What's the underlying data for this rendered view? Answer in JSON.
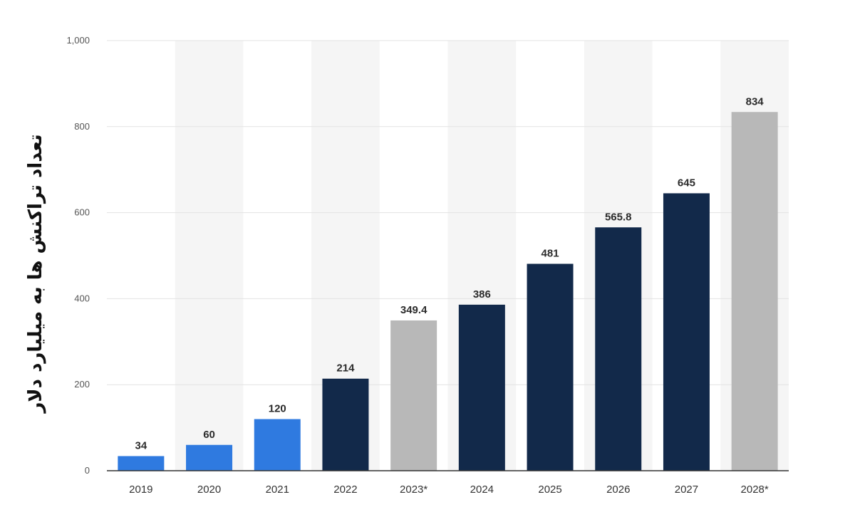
{
  "chart_data": {
    "type": "bar",
    "title": "",
    "xlabel": "",
    "ylabel": "تعداد تراکنش ها به میلیارد دلار",
    "ylim": [
      0,
      1000
    ],
    "yticks": [
      0,
      200,
      400,
      600,
      800,
      1000
    ],
    "ytick_labels": [
      "0",
      "200",
      "400",
      "600",
      "800",
      "1,000"
    ],
    "grid": true,
    "categories": [
      "2019",
      "2020",
      "2021",
      "2022",
      "2023*",
      "2024",
      "2025",
      "2026",
      "2027",
      "2028*"
    ],
    "values": [
      34,
      60,
      120,
      214,
      349.4,
      386,
      481,
      565.8,
      645,
      834
    ],
    "value_labels": [
      "34",
      "60",
      "120",
      "214",
      "349.4",
      "386",
      "481",
      "565.8",
      "645",
      "834"
    ],
    "bar_colors": [
      "#2f7ae0",
      "#2f7ae0",
      "#2f7ae0",
      "#12294a",
      "#b8b8b8",
      "#12294a",
      "#12294a",
      "#12294a",
      "#12294a",
      "#b8b8b8"
    ],
    "band_color": "#f5f5f5",
    "grid_color": "#e3e3e3",
    "axis_color": "#333333"
  }
}
